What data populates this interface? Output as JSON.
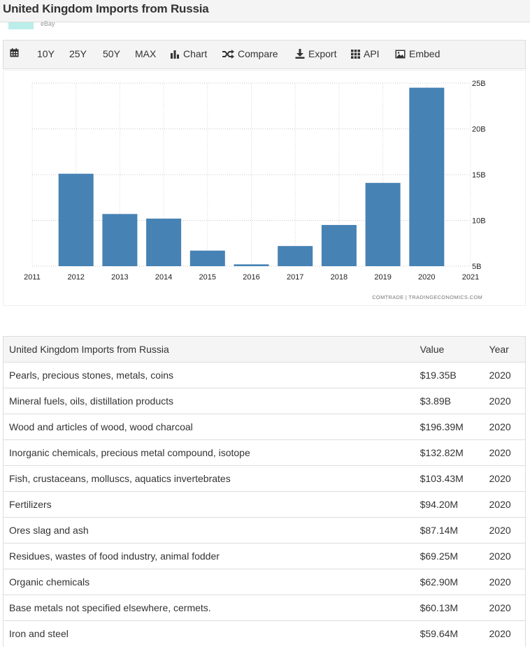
{
  "page": {
    "title": "United Kingdom Imports from Russia",
    "ad_text": "eBay"
  },
  "toolbar": {
    "items": [
      {
        "id": "calendar",
        "label": "",
        "icon": "calendar-icon"
      },
      {
        "id": "10y",
        "label": "10Y"
      },
      {
        "id": "25y",
        "label": "25Y"
      },
      {
        "id": "50y",
        "label": "50Y"
      },
      {
        "id": "max",
        "label": "MAX"
      },
      {
        "id": "chart",
        "label": "Chart",
        "icon": "bar-chart-icon"
      },
      {
        "id": "compare",
        "label": "Compare",
        "icon": "shuffle-icon"
      },
      {
        "id": "export",
        "label": "Export",
        "icon": "download-icon"
      },
      {
        "id": "api",
        "label": "API",
        "icon": "grid-icon"
      },
      {
        "id": "embed",
        "label": "Embed",
        "icon": "image-icon"
      }
    ]
  },
  "chart_data": {
    "type": "bar",
    "categories": [
      "2012",
      "2013",
      "2014",
      "2015",
      "2016",
      "2017",
      "2018",
      "2019",
      "2020"
    ],
    "values": [
      15.1,
      10.7,
      10.2,
      6.7,
      5.2,
      7.2,
      9.5,
      14.1,
      24.5
    ],
    "x_tick_labels": [
      "2011",
      "2012",
      "2013",
      "2014",
      "2015",
      "2016",
      "2017",
      "2018",
      "2019",
      "2020",
      "2021"
    ],
    "y_ticks": [
      5,
      10,
      15,
      20,
      25
    ],
    "y_tick_labels": [
      "5B",
      "10B",
      "15B",
      "20B",
      "25B"
    ],
    "ylim": [
      5,
      25
    ],
    "color": "#4682b4",
    "grid": true,
    "source": "COMTRADE | TRADINGECONOMICS.COM",
    "title": "",
    "xlabel": "",
    "ylabel": ""
  },
  "table": {
    "headers": [
      "United Kingdom Imports from Russia",
      "Value",
      "Year"
    ],
    "rows": [
      [
        "Pearls, precious stones, metals, coins",
        "$19.35B",
        "2020"
      ],
      [
        "Mineral fuels, oils, distillation products",
        "$3.89B",
        "2020"
      ],
      [
        "Wood and articles of wood, wood charcoal",
        "$196.39M",
        "2020"
      ],
      [
        "Inorganic chemicals, precious metal compound, isotope",
        "$132.82M",
        "2020"
      ],
      [
        "Fish, crustaceans, molluscs, aquatics invertebrates",
        "$103.43M",
        "2020"
      ],
      [
        "Fertilizers",
        "$94.20M",
        "2020"
      ],
      [
        "Ores slag and ash",
        "$87.14M",
        "2020"
      ],
      [
        "Residues, wastes of food industry, animal fodder",
        "$69.25M",
        "2020"
      ],
      [
        "Organic chemicals",
        "$62.90M",
        "2020"
      ],
      [
        "Base metals not specified elsewhere, cermets.",
        "$60.13M",
        "2020"
      ],
      [
        "Iron and steel",
        "$59.64M",
        "2020"
      ]
    ]
  }
}
